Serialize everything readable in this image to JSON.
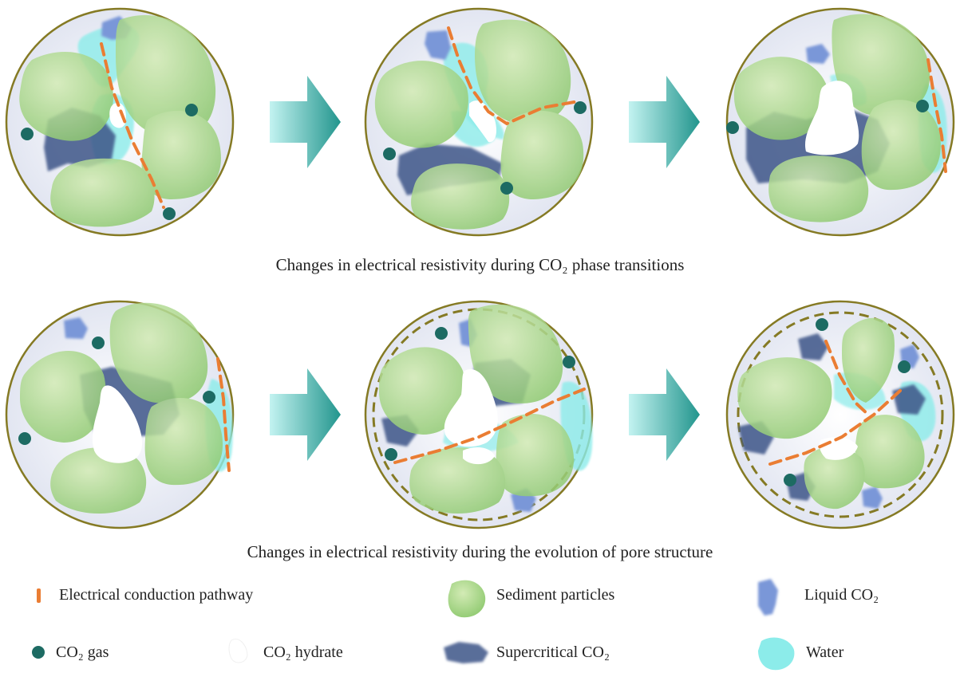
{
  "captions": {
    "top": "Changes in electrical resistivity during CO₂ phase transitions",
    "bottom": "Changes in electrical resistivity during the evolution of pore structure"
  },
  "legend": {
    "pathway": "Electrical conduction pathway",
    "sediment": "Sediment particles",
    "liquid": "Liquid CO₂",
    "gas": "CO₂ gas",
    "hydrate": "CO₂ hydrate",
    "supercritical": "Supercritical CO₂",
    "water": "Water"
  },
  "colors": {
    "pathway": "#ea7d33",
    "sediment_light": "#c7e3a6",
    "sediment_dark": "#8fca6f",
    "liquid": "#7a97d8",
    "gas": "#1d6b63",
    "supercritical": "#3d5588",
    "water": "#8cecea",
    "arrow_light": "#b3f0ee",
    "arrow_dark": "#2a9a92",
    "circle_outline": "#857a24",
    "circle_fill": "#e9ecf5"
  }
}
